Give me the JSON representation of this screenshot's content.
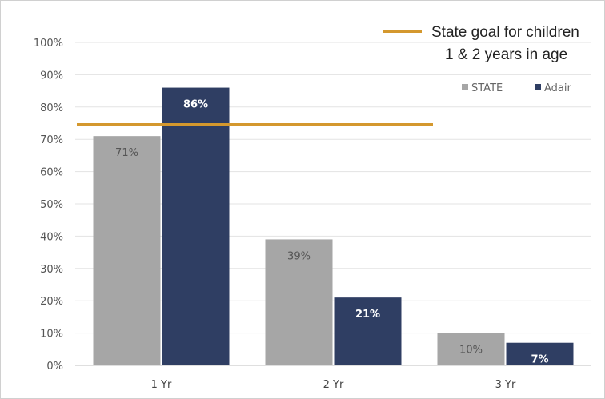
{
  "chart_data": {
    "type": "bar",
    "categories": [
      "1 Yr",
      "2 Yr",
      "3 Yr"
    ],
    "series": [
      {
        "name": "STATE",
        "values": [
          71,
          39,
          10
        ],
        "labels": [
          "71%",
          "39%",
          "10%"
        ],
        "color": "#a6a6a6",
        "label_color": "#555555"
      },
      {
        "name": "Adair",
        "values": [
          86,
          21,
          7
        ],
        "labels": [
          "86%",
          "21%",
          "7%"
        ],
        "color": "#2f3e63",
        "label_color": "#ffffff"
      }
    ],
    "ylim": [
      0,
      100
    ],
    "yticks": [
      0,
      10,
      20,
      30,
      40,
      50,
      60,
      70,
      80,
      90,
      100
    ],
    "ytick_labels": [
      "0%",
      "10%",
      "20%",
      "30%",
      "40%",
      "50%",
      "60%",
      "70%",
      "80%",
      "90%",
      "100%"
    ],
    "grid": true,
    "legend_position": "top-right",
    "reference_line": {
      "value": 74.5,
      "color": "#d4982e",
      "label_line1": "State goal for children",
      "label_line2": "1 & 2 years in age"
    }
  }
}
